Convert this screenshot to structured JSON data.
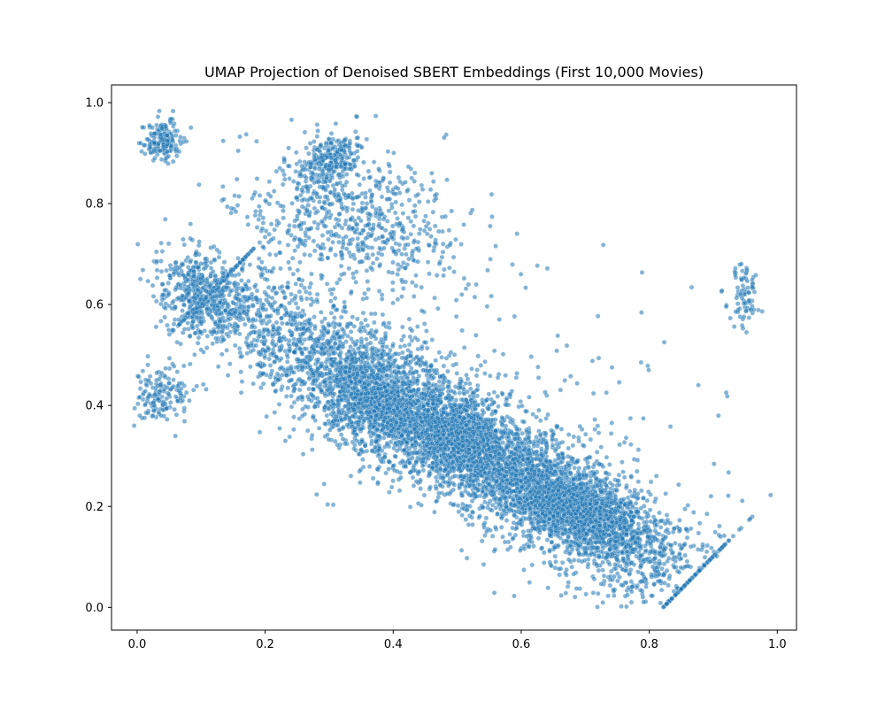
{
  "chart_data": {
    "type": "scatter",
    "title": "UMAP Projection of Denoised SBERT Embeddings (First 10,000 Movies)",
    "xlabel": "",
    "ylabel": "",
    "xlim": [
      -0.04,
      1.03
    ],
    "ylim": [
      -0.045,
      1.035
    ],
    "x_ticks": [
      0.0,
      0.2,
      0.4,
      0.6,
      0.8,
      1.0
    ],
    "x_tick_labels": [
      "0.0",
      "0.2",
      "0.4",
      "0.6",
      "0.8",
      "1.0"
    ],
    "y_ticks": [
      0.0,
      0.2,
      0.4,
      0.6,
      0.8,
      1.0
    ],
    "y_tick_labels": [
      "0.0",
      "0.2",
      "0.4",
      "0.6",
      "0.8",
      "1.0"
    ],
    "grid": false,
    "legend": "none",
    "marker_color": "#1f77b4",
    "marker_edge_color": "#ffffff",
    "marker_alpha": 0.55,
    "point_count": 10000,
    "clusters": [
      {
        "name": "main-band",
        "n": 5200,
        "x0": 0.18,
        "y0": 0.58,
        "x1": 0.8,
        "y1": 0.1,
        "spread_along": 0.32,
        "spread_across": 0.055
      },
      {
        "name": "dense-core-a",
        "n": 1600,
        "cx": 0.68,
        "cy": 0.2,
        "sx": 0.06,
        "sy": 0.05,
        "corr": -0.7
      },
      {
        "name": "dense-core-b",
        "n": 700,
        "cx": 0.5,
        "cy": 0.34,
        "sx": 0.04,
        "sy": 0.035,
        "corr": -0.4
      },
      {
        "name": "dense-core-c",
        "n": 500,
        "cx": 0.37,
        "cy": 0.4,
        "sx": 0.04,
        "sy": 0.04,
        "corr": -0.3
      },
      {
        "name": "left-upper",
        "n": 500,
        "cx": 0.1,
        "cy": 0.62,
        "sx": 0.035,
        "sy": 0.04,
        "corr": -0.2
      },
      {
        "name": "top-left-corner",
        "n": 180,
        "cx": 0.04,
        "cy": 0.925,
        "sx": 0.015,
        "sy": 0.02,
        "corr": 0.0
      },
      {
        "name": "upper-arm",
        "n": 650,
        "x0": 0.15,
        "y0": 0.85,
        "x1": 0.52,
        "y1": 0.7,
        "spread_along": 0.22,
        "spread_across": 0.06
      },
      {
        "name": "top-ridge",
        "n": 250,
        "x0": 0.22,
        "y0": 0.95,
        "x1": 0.38,
        "y1": 0.82,
        "spread_along": 0.1,
        "spread_across": 0.03
      },
      {
        "name": "left-lower",
        "n": 150,
        "cx": 0.04,
        "cy": 0.42,
        "sx": 0.02,
        "sy": 0.025,
        "corr": 0.0
      },
      {
        "name": "right-hook",
        "n": 80,
        "cx": 0.945,
        "cy": 0.615,
        "sx": 0.012,
        "sy": 0.03,
        "corr": 0.0
      },
      {
        "name": "sparse-outliers",
        "n": 190,
        "cx": 0.5,
        "cy": 0.5,
        "sx": 0.25,
        "sy": 0.2,
        "corr": -0.5
      }
    ]
  }
}
